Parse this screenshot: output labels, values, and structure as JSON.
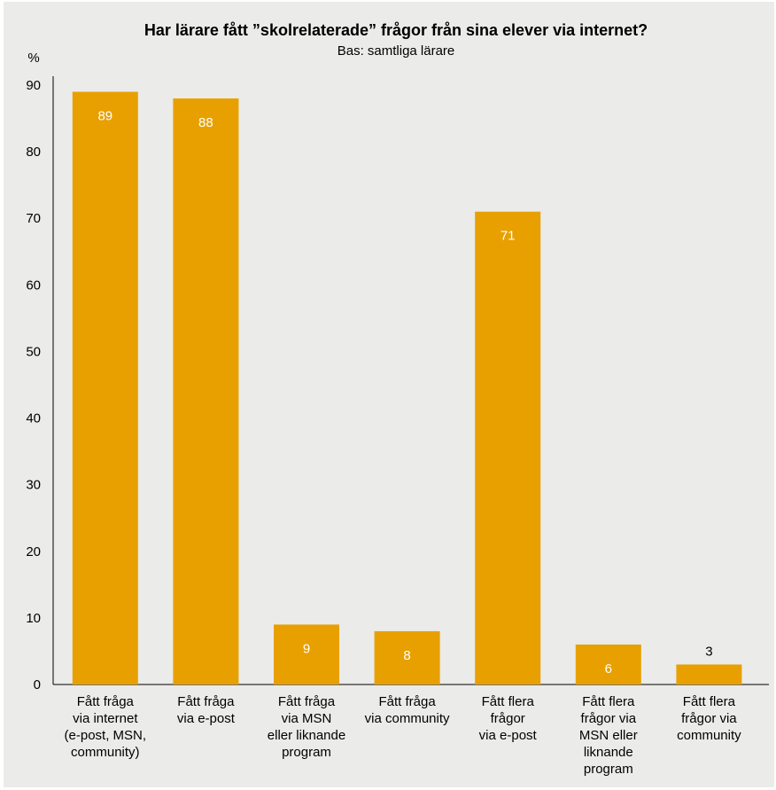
{
  "chart_data": {
    "type": "bar",
    "title": "Har lärare fått ”skolrelaterade” frågor från sina elever via internet?",
    "subtitle": "Bas: samtliga lärare",
    "ylabel": "%",
    "ylim": [
      0,
      90
    ],
    "yticks": [
      0,
      10,
      20,
      30,
      40,
      50,
      60,
      70,
      80,
      90
    ],
    "categories": [
      [
        "Fått fråga",
        "via internet",
        "(e-post, MSN,",
        "community)"
      ],
      [
        "Fått fråga",
        "via e-post"
      ],
      [
        "Fått fråga",
        "via MSN",
        "eller liknande",
        "program"
      ],
      [
        "Fått fråga",
        "via community"
      ],
      [
        "Fått flera",
        "frågor",
        "via e-post"
      ],
      [
        "Fått flera",
        "frågor via",
        "MSN eller",
        "liknande",
        "program"
      ],
      [
        "Fått flera",
        "frågor via",
        "community"
      ]
    ],
    "values": [
      89,
      88,
      9,
      8,
      71,
      6,
      3
    ],
    "value_labels": [
      "89",
      "88",
      "9",
      "8",
      "71",
      "6",
      "3"
    ],
    "grid": false,
    "legend": "none",
    "colors": {
      "bar": "#e8a000",
      "background": "#ebebea",
      "label_inside": "#ffffff",
      "label_outside": "#000000"
    }
  }
}
